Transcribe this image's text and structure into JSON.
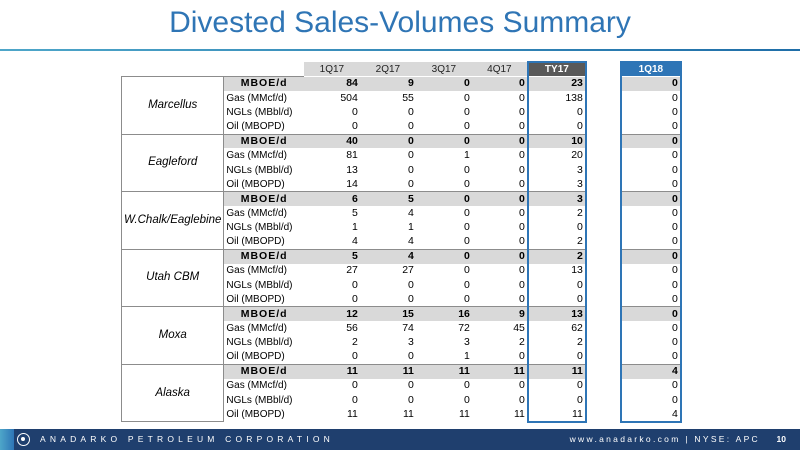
{
  "title": "Divested Sales-Volumes Summary",
  "columns": [
    "1Q17",
    "2Q17",
    "3Q17",
    "4Q17",
    "TY17",
    "1Q18"
  ],
  "regions": [
    {
      "name": "Marcellus",
      "rows": [
        {
          "label": "MBOE/d",
          "values": [
            "84",
            "9",
            "0",
            "0",
            "23",
            "0"
          ]
        },
        {
          "label": "Gas (MMcf/d)",
          "values": [
            "504",
            "55",
            "0",
            "0",
            "138",
            "0"
          ]
        },
        {
          "label": "NGLs (MBbl/d)",
          "values": [
            "0",
            "0",
            "0",
            "0",
            "0",
            "0"
          ]
        },
        {
          "label": "Oil (MBOPD)",
          "values": [
            "0",
            "0",
            "0",
            "0",
            "0",
            "0"
          ]
        }
      ]
    },
    {
      "name": "Eagleford",
      "rows": [
        {
          "label": "MBOE/d",
          "values": [
            "40",
            "0",
            "0",
            "0",
            "10",
            "0"
          ]
        },
        {
          "label": "Gas (MMcf/d)",
          "values": [
            "81",
            "0",
            "1",
            "0",
            "20",
            "0"
          ]
        },
        {
          "label": "NGLs (MBbl/d)",
          "values": [
            "13",
            "0",
            "0",
            "0",
            "3",
            "0"
          ]
        },
        {
          "label": "Oil (MBOPD)",
          "values": [
            "14",
            "0",
            "0",
            "0",
            "3",
            "0"
          ]
        }
      ]
    },
    {
      "name": "W.Chalk/Eaglebine",
      "rows": [
        {
          "label": "MBOE/d",
          "values": [
            "6",
            "5",
            "0",
            "0",
            "3",
            "0"
          ]
        },
        {
          "label": "Gas (MMcf/d)",
          "values": [
            "5",
            "4",
            "0",
            "0",
            "2",
            "0"
          ]
        },
        {
          "label": "NGLs (MBbl/d)",
          "values": [
            "1",
            "1",
            "0",
            "0",
            "0",
            "0"
          ]
        },
        {
          "label": "Oil (MBOPD)",
          "values": [
            "4",
            "4",
            "0",
            "0",
            "2",
            "0"
          ]
        }
      ]
    },
    {
      "name": "Utah CBM",
      "rows": [
        {
          "label": "MBOE/d",
          "values": [
            "5",
            "4",
            "0",
            "0",
            "2",
            "0"
          ]
        },
        {
          "label": "Gas (MMcf/d)",
          "values": [
            "27",
            "27",
            "0",
            "0",
            "13",
            "0"
          ]
        },
        {
          "label": "NGLs (MBbl/d)",
          "values": [
            "0",
            "0",
            "0",
            "0",
            "0",
            "0"
          ]
        },
        {
          "label": "Oil (MBOPD)",
          "values": [
            "0",
            "0",
            "0",
            "0",
            "0",
            "0"
          ]
        }
      ]
    },
    {
      "name": "Moxa",
      "rows": [
        {
          "label": "MBOE/d",
          "values": [
            "12",
            "15",
            "16",
            "9",
            "13",
            "0"
          ]
        },
        {
          "label": "Gas (MMcf/d)",
          "values": [
            "56",
            "74",
            "72",
            "45",
            "62",
            "0"
          ]
        },
        {
          "label": "NGLs (MBbl/d)",
          "values": [
            "2",
            "3",
            "3",
            "2",
            "2",
            "0"
          ]
        },
        {
          "label": "Oil (MBOPD)",
          "values": [
            "0",
            "0",
            "1",
            "0",
            "0",
            "0"
          ]
        }
      ]
    },
    {
      "name": "Alaska",
      "rows": [
        {
          "label": "MBOE/d",
          "values": [
            "11",
            "11",
            "11",
            "11",
            "11",
            "4"
          ]
        },
        {
          "label": "Gas (MMcf/d)",
          "values": [
            "0",
            "0",
            "0",
            "0",
            "0",
            "0"
          ]
        },
        {
          "label": "NGLs (MBbl/d)",
          "values": [
            "0",
            "0",
            "0",
            "0",
            "0",
            "0"
          ]
        },
        {
          "label": "Oil (MBOPD)",
          "values": [
            "11",
            "11",
            "11",
            "11",
            "11",
            "4"
          ]
        }
      ]
    }
  ],
  "footer": {
    "company": "ANADARKO PETROLEUM CORPORATION",
    "website": "www.anadarko.com | NYSE: APC",
    "page": "10",
    "logo_icon": "anadarko-logo-icon"
  },
  "colors": {
    "title": "#2f75b5",
    "accent": "#2e75b6",
    "footer_bg": "#1f3f6e",
    "header_shade": "#d9d9d9",
    "ty17_header": "#595959"
  }
}
